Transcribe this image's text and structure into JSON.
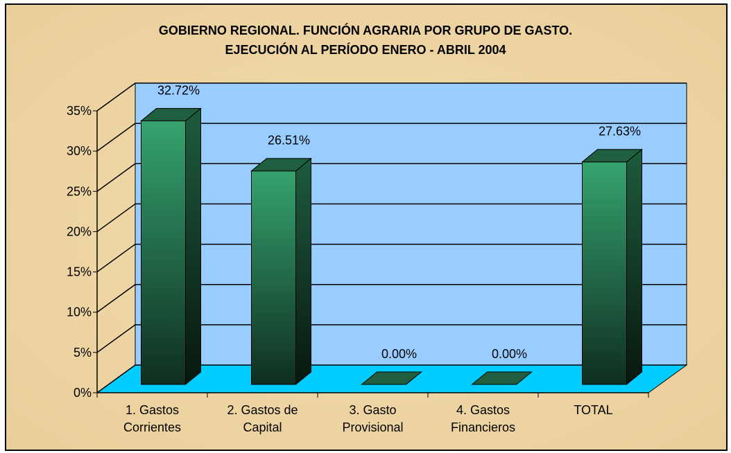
{
  "chart_data": {
    "type": "bar3d",
    "title": "GOBIERNO REGIONAL. FUNCIÓN AGRARIA POR GRUPO DE GASTO.\nEJECUCIÓN AL PERÍODO ENERO - ABRIL 2004",
    "categories": [
      "1. Gastos\nCorrientes",
      "2. Gastos de\nCapital",
      "3. Gasto\nProvisional",
      "4. Gastos\nFinancieros",
      "TOTAL"
    ],
    "values": [
      32.72,
      26.51,
      0,
      0,
      27.63
    ],
    "value_labels": [
      "32.72%",
      "26.51%",
      "0.00%",
      "0.00%",
      "27.63%"
    ],
    "color": "#2e9a68",
    "ylim": [
      0,
      35
    ],
    "yticks": [
      {
        "value": 0,
        "label": "0%"
      },
      {
        "value": 5,
        "label": "5%"
      },
      {
        "value": 10,
        "label": "10%"
      },
      {
        "value": 15,
        "label": "15%"
      },
      {
        "value": 20,
        "label": "20%"
      },
      {
        "value": 25,
        "label": "25%"
      },
      {
        "value": 30,
        "label": "30%"
      },
      {
        "value": 35,
        "label": "35%"
      }
    ],
    "grid": true
  }
}
